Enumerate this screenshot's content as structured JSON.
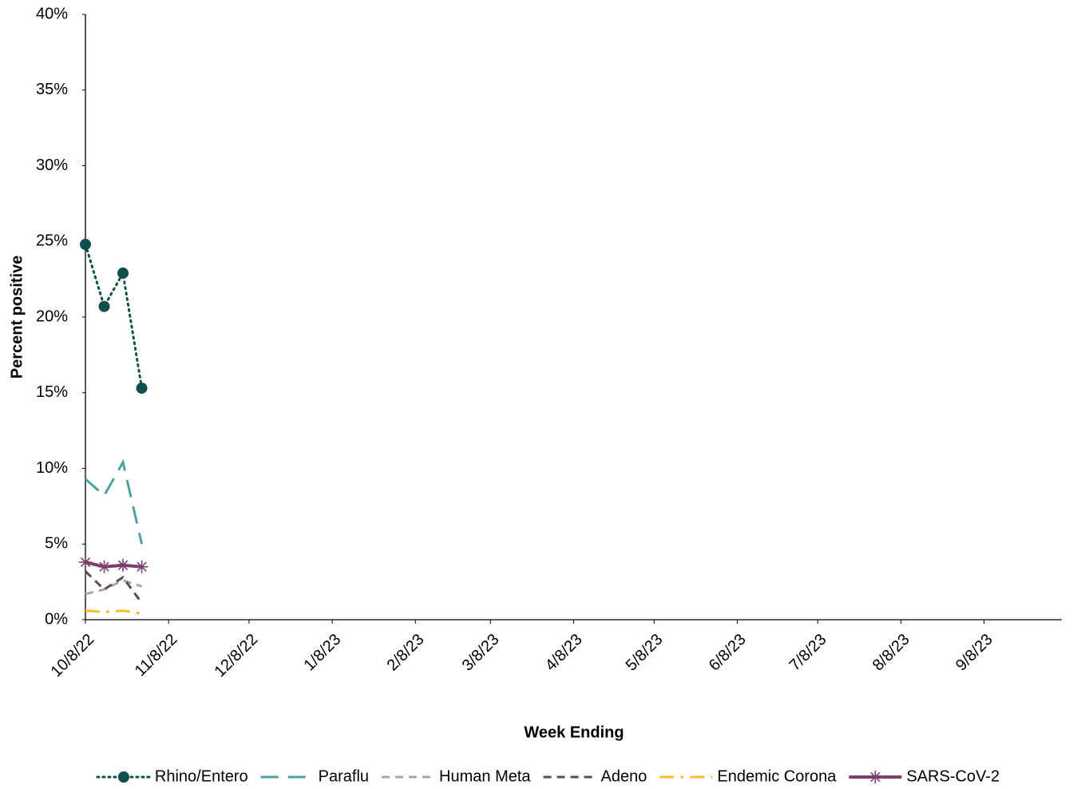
{
  "chart_data": {
    "type": "line",
    "x_title": "Week Ending",
    "y_title": "Percent positive",
    "x": [
      "10/8/22",
      "10/15/22",
      "10/22/22",
      "10/29/22"
    ],
    "xlim": [
      "10/8/22",
      "10/7/23"
    ],
    "xticks": [
      "10/8/22",
      "11/8/22",
      "12/8/22",
      "1/8/23",
      "2/8/23",
      "3/8/23",
      "4/8/23",
      "5/8/23",
      "6/8/23",
      "7/8/23",
      "8/8/23",
      "9/8/23"
    ],
    "ylim": [
      0,
      40
    ],
    "yticks": [
      {
        "value": 0,
        "label": "0%"
      },
      {
        "value": 5,
        "label": "5%"
      },
      {
        "value": 10,
        "label": "10%"
      },
      {
        "value": 15,
        "label": "15%"
      },
      {
        "value": 20,
        "label": "20%"
      },
      {
        "value": 25,
        "label": "25%"
      },
      {
        "value": 30,
        "label": "30%"
      },
      {
        "value": 35,
        "label": "35%"
      },
      {
        "value": 40,
        "label": "40%"
      }
    ],
    "legend": "bottom",
    "series": [
      {
        "name": "Rhino/Entero",
        "color": "#0d4f4a",
        "dash": "dot",
        "marker": "circle",
        "values": [
          24.8,
          20.7,
          22.9,
          15.3
        ]
      },
      {
        "name": "Paraflu",
        "color": "#4aa3a0",
        "dash": "longdash",
        "marker": "none",
        "values": [
          9.3,
          8.2,
          10.4,
          5.0
        ]
      },
      {
        "name": "Human Meta",
        "color": "#a6a6a6",
        "dash": "dash",
        "marker": "none",
        "values": [
          1.7,
          2.0,
          2.6,
          2.2
        ]
      },
      {
        "name": "Adeno",
        "color": "#5e4b4b",
        "dash": "dash",
        "marker": "none",
        "values": [
          3.2,
          2.0,
          2.8,
          1.1
        ]
      },
      {
        "name": "Endemic Corona",
        "color": "#fbbc2e",
        "dash": "dashdot",
        "marker": "none",
        "values": [
          0.6,
          0.5,
          0.6,
          0.4
        ]
      },
      {
        "name": "SARS-CoV-2",
        "color": "#7b3f6e",
        "dash": "solid",
        "marker": "star",
        "values": [
          3.8,
          3.5,
          3.6,
          3.5
        ]
      }
    ]
  }
}
